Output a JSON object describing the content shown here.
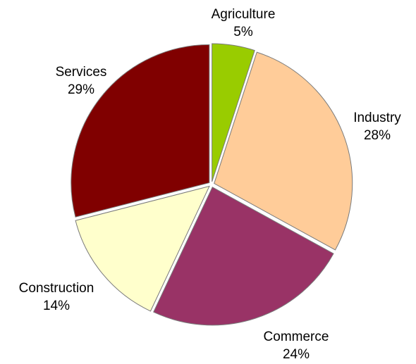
{
  "chart_data": {
    "type": "pie",
    "start_angle_deg": 0,
    "direction": "clockwise",
    "slices": [
      {
        "label": "Agriculture",
        "percent_label": "5%",
        "value": 5,
        "color": "#99cc00"
      },
      {
        "label": "Industry",
        "percent_label": "28%",
        "value": 28,
        "color": "#ffcc99"
      },
      {
        "label": "Commerce",
        "percent_label": "24%",
        "value": 24,
        "color": "#993366"
      },
      {
        "label": "Construction",
        "percent_label": "14%",
        "value": 14,
        "color": "#ffffcc"
      },
      {
        "label": "Services",
        "percent_label": "29%",
        "value": 29,
        "color": "#800000"
      }
    ],
    "legend": false
  }
}
